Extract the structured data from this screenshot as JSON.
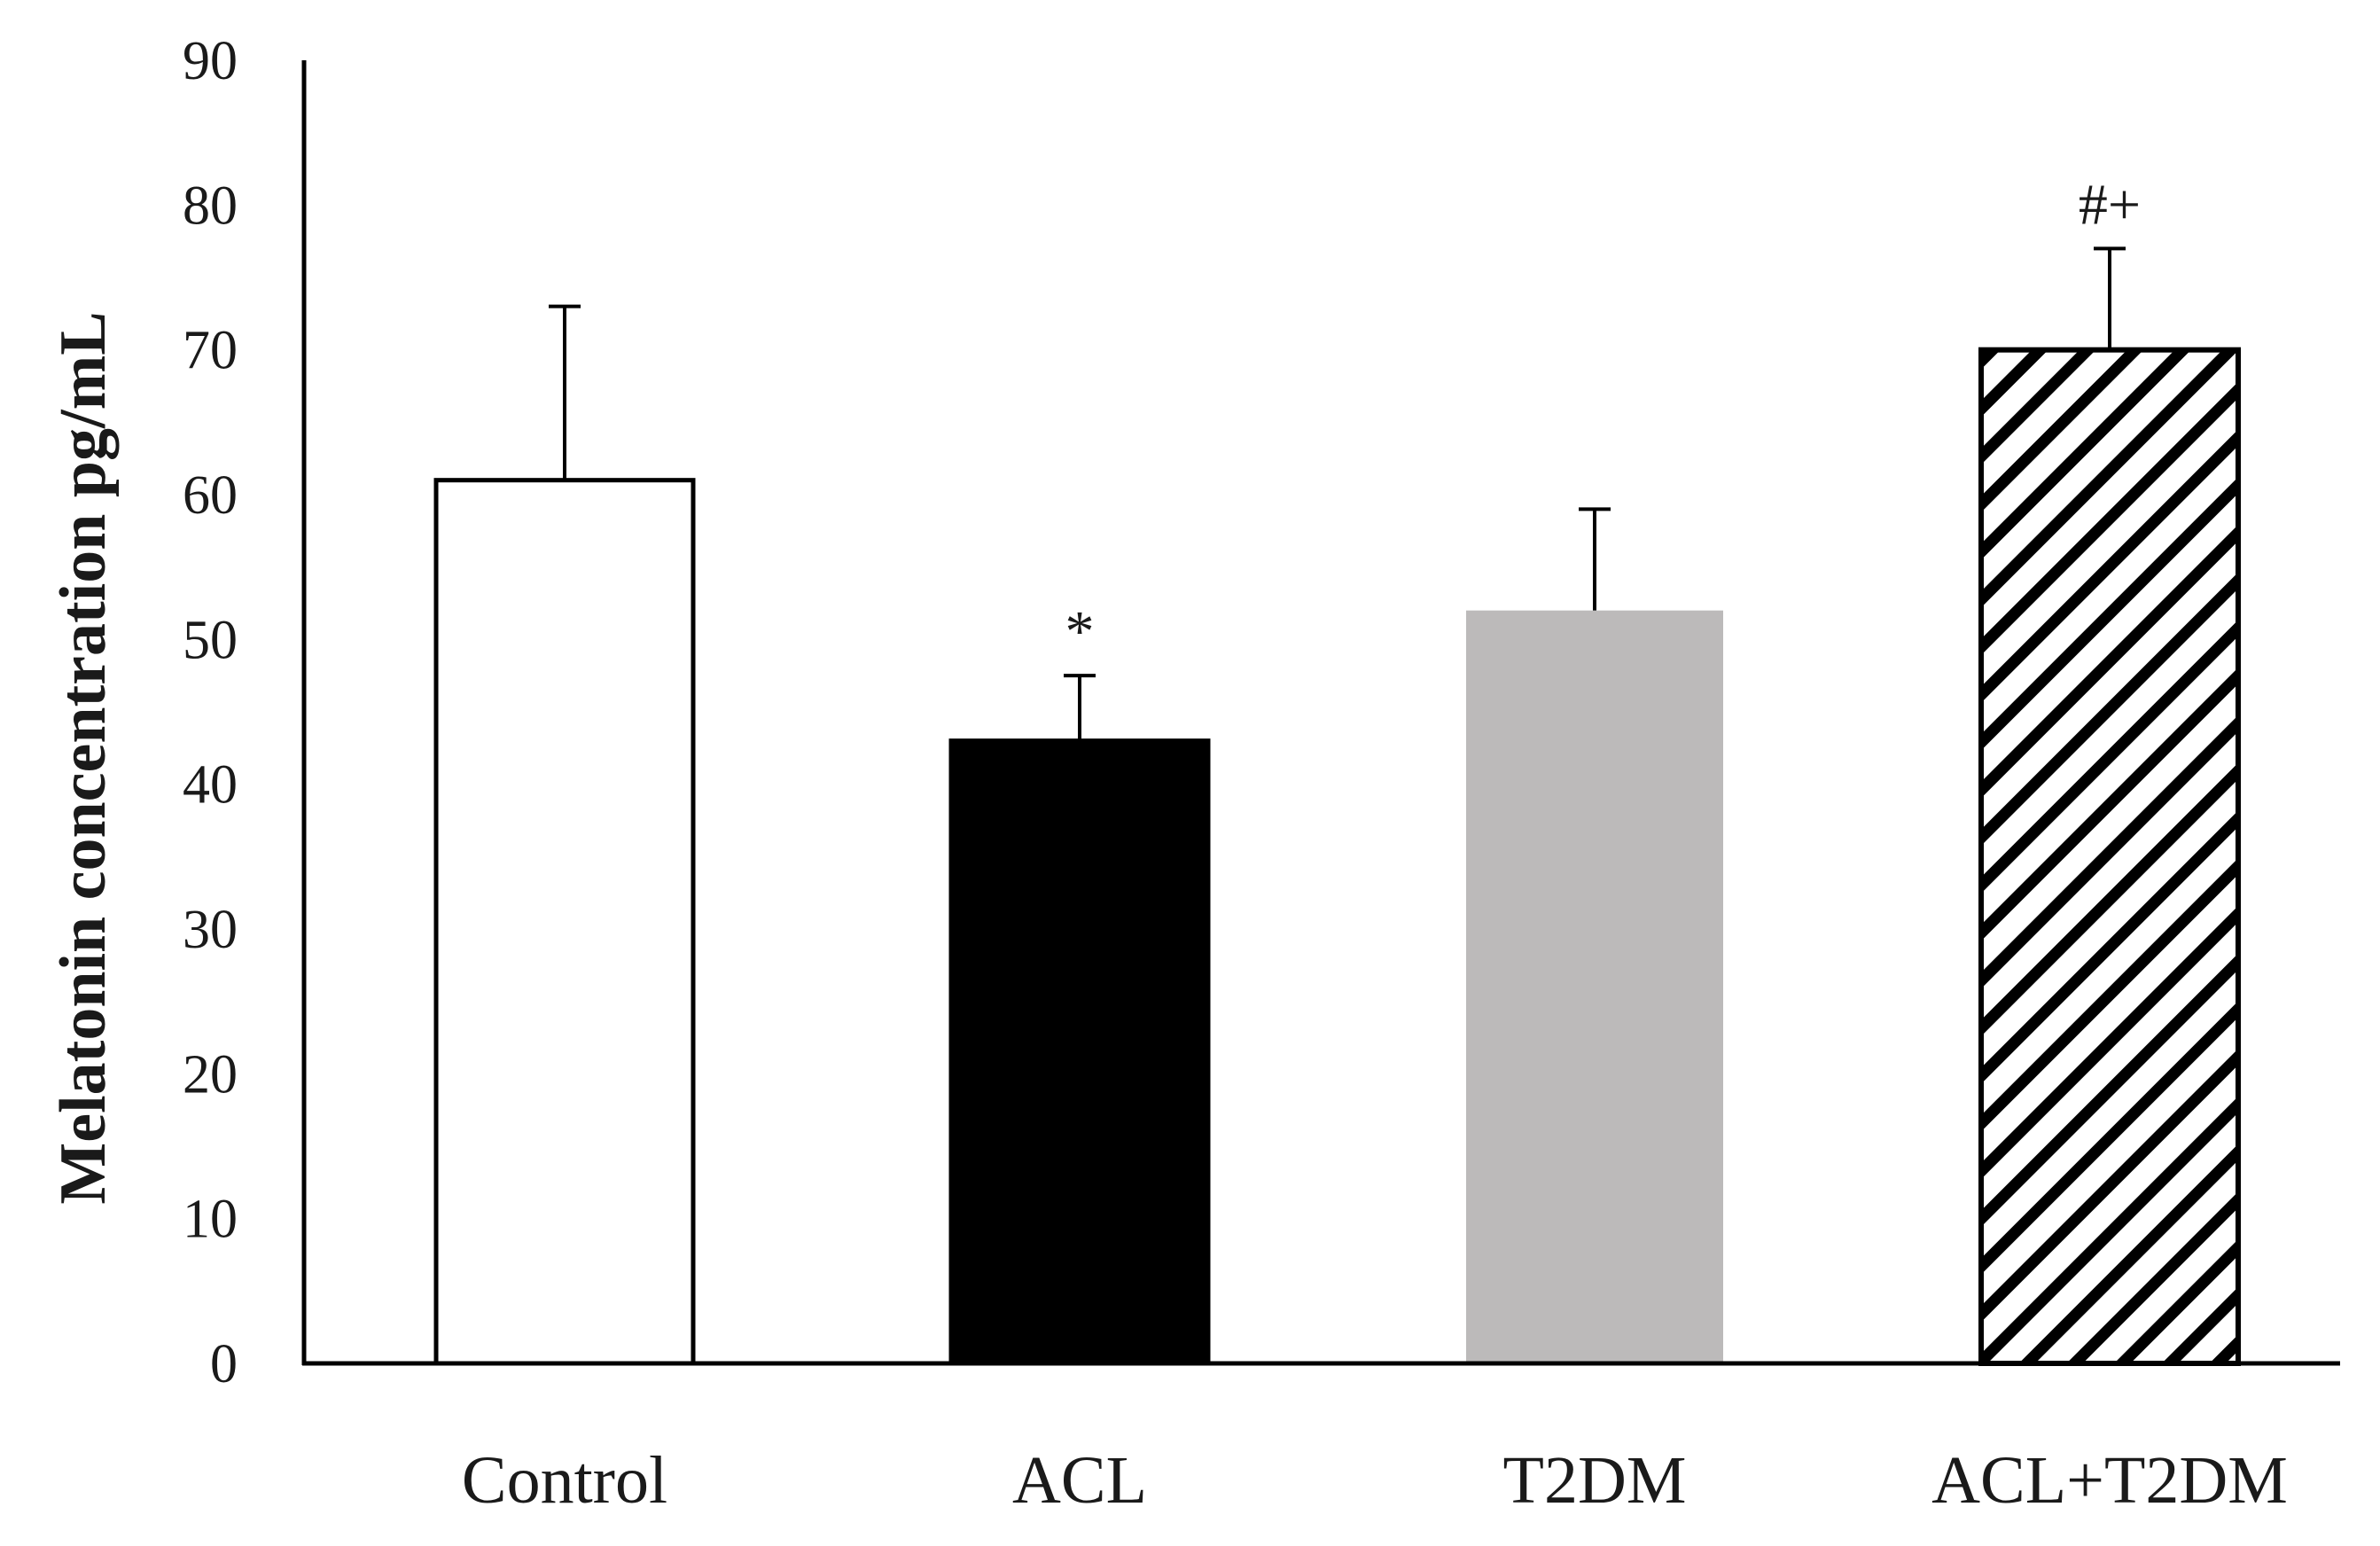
{
  "chart_data": {
    "type": "bar",
    "title": "",
    "xlabel": "",
    "ylabel": "Melatonin concentration  pg/mL",
    "ylim": [
      0,
      90
    ],
    "yticks": [
      0,
      10,
      20,
      30,
      40,
      50,
      60,
      70,
      80,
      90
    ],
    "ytick_labels": [
      "0",
      "10",
      "20",
      "30",
      "40",
      "50",
      "60",
      "70",
      "80",
      "90"
    ],
    "grid": false,
    "legend": "none",
    "categories": [
      "Control",
      "ACL",
      "T2DM",
      "ACL+T2DM"
    ],
    "values": [
      61,
      43,
      52,
      70
    ],
    "errors": [
      12,
      4.5,
      7,
      7
    ],
    "annotations": [
      "",
      "*",
      "",
      "#+"
    ],
    "fills": [
      "white",
      "black",
      "gray",
      "hatched"
    ],
    "colors": {
      "white": "#ffffff",
      "black": "#000000",
      "gray": "#bcbaba",
      "stroke": "#000000",
      "axis": "#000000"
    }
  }
}
